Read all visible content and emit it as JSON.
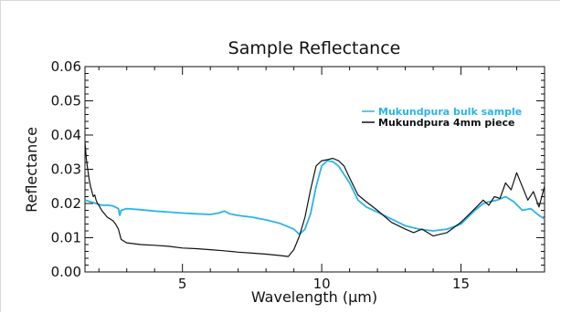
{
  "chart_data": {
    "type": "line",
    "title": "Sample Reflectance",
    "xlabel": "Wavelength (μm)",
    "ylabel": "Reflectance",
    "xlim": [
      1.5,
      18
    ],
    "ylim": [
      0.0,
      0.06
    ],
    "x_ticks": [
      5,
      10,
      15
    ],
    "x_tick_labels": [
      "5",
      "10",
      "15"
    ],
    "y_ticks": [
      0.0,
      0.01,
      0.02,
      0.03,
      0.04,
      0.05,
      0.06
    ],
    "y_tick_labels": [
      "0.00",
      "0.01",
      "0.02",
      "0.03",
      "0.04",
      "0.05",
      "0.06"
    ],
    "legend_position": "top-right",
    "series": [
      {
        "name": "Mukundpura bulk sample",
        "color": "#2ab4e8",
        "x": [
          1.5,
          1.7,
          1.9,
          2.1,
          2.3,
          2.5,
          2.7,
          2.75,
          2.8,
          3.0,
          3.5,
          4.0,
          4.5,
          5.0,
          5.5,
          6.0,
          6.3,
          6.5,
          6.7,
          7.0,
          7.5,
          8.0,
          8.5,
          9.0,
          9.2,
          9.4,
          9.6,
          9.8,
          10.0,
          10.2,
          10.4,
          10.6,
          10.8,
          11.0,
          11.3,
          11.6,
          12.0,
          12.5,
          13.0,
          13.5,
          14.0,
          14.5,
          15.0,
          15.5,
          15.8,
          16.0,
          16.3,
          16.6,
          16.9,
          17.2,
          17.5,
          17.8,
          18.0
        ],
        "y": [
          0.021,
          0.0205,
          0.02,
          0.0195,
          0.0195,
          0.0193,
          0.0185,
          0.0165,
          0.018,
          0.0185,
          0.0182,
          0.0178,
          0.0175,
          0.0172,
          0.017,
          0.0168,
          0.0172,
          0.0178,
          0.017,
          0.0165,
          0.016,
          0.0152,
          0.0142,
          0.0125,
          0.011,
          0.0125,
          0.017,
          0.025,
          0.031,
          0.0325,
          0.0322,
          0.031,
          0.0285,
          0.026,
          0.021,
          0.019,
          0.0175,
          0.0155,
          0.0135,
          0.0125,
          0.012,
          0.0125,
          0.014,
          0.018,
          0.02,
          0.0205,
          0.021,
          0.022,
          0.0205,
          0.018,
          0.0185,
          0.0165,
          0.0155
        ]
      },
      {
        "name": "Mukundpura 4mm piece",
        "color": "#111111",
        "x": [
          1.5,
          1.55,
          1.6,
          1.65,
          1.7,
          1.75,
          1.8,
          1.85,
          1.9,
          1.95,
          2.0,
          2.1,
          2.2,
          2.3,
          2.4,
          2.5,
          2.6,
          2.7,
          2.75,
          2.8,
          3.0,
          3.5,
          4.0,
          4.5,
          5.0,
          5.5,
          6.0,
          6.5,
          7.0,
          7.5,
          8.0,
          8.5,
          8.8,
          9.0,
          9.2,
          9.4,
          9.6,
          9.8,
          10.0,
          10.2,
          10.4,
          10.6,
          10.8,
          11.0,
          11.3,
          11.6,
          12.0,
          12.5,
          13.0,
          13.3,
          13.6,
          14.0,
          14.5,
          15.0,
          15.5,
          15.8,
          16.0,
          16.2,
          16.4,
          16.6,
          16.8,
          17.0,
          17.2,
          17.4,
          17.6,
          17.8,
          18.0
        ],
        "y": [
          0.038,
          0.033,
          0.03,
          0.027,
          0.025,
          0.0235,
          0.022,
          0.0225,
          0.021,
          0.02,
          0.0195,
          0.018,
          0.017,
          0.016,
          0.0155,
          0.015,
          0.014,
          0.0125,
          0.011,
          0.0095,
          0.0085,
          0.008,
          0.0078,
          0.0075,
          0.007,
          0.0068,
          0.0065,
          0.0062,
          0.0058,
          0.0055,
          0.0052,
          0.0048,
          0.0045,
          0.0065,
          0.0105,
          0.016,
          0.024,
          0.031,
          0.0325,
          0.0328,
          0.0332,
          0.0325,
          0.031,
          0.0275,
          0.0225,
          0.0205,
          0.018,
          0.0145,
          0.0125,
          0.0115,
          0.0125,
          0.0105,
          0.0115,
          0.0145,
          0.0185,
          0.021,
          0.0195,
          0.022,
          0.0215,
          0.026,
          0.024,
          0.029,
          0.025,
          0.021,
          0.0235,
          0.019,
          0.025
        ]
      }
    ]
  }
}
